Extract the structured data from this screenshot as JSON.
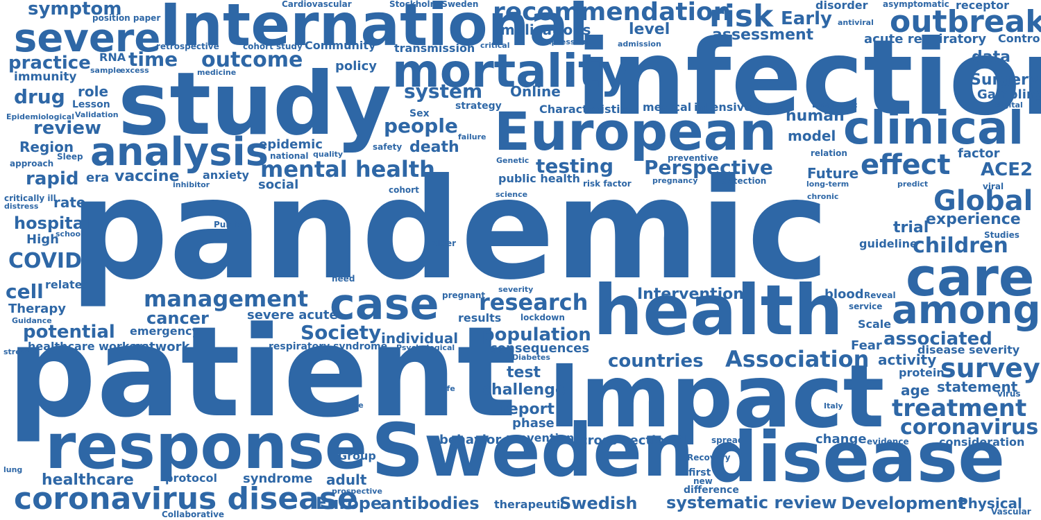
{
  "word_color": "#2e67a6",
  "words": [
    {
      "text": "pandemic"
    },
    {
      "text": "patient"
    },
    {
      "text": "infection"
    },
    {
      "text": "study"
    },
    {
      "text": "Impact"
    },
    {
      "text": "Sweden"
    },
    {
      "text": "health"
    },
    {
      "text": "disease"
    },
    {
      "text": "response"
    },
    {
      "text": "International"
    },
    {
      "text": "European"
    },
    {
      "text": "care"
    },
    {
      "text": "mortality"
    },
    {
      "text": "clinical"
    },
    {
      "text": "case"
    },
    {
      "text": "among"
    },
    {
      "text": "severe"
    },
    {
      "text": "analysis"
    },
    {
      "text": "outbreak"
    },
    {
      "text": "coronavirus disease"
    },
    {
      "text": "recommendation"
    },
    {
      "text": "risk"
    },
    {
      "text": "effect"
    },
    {
      "text": "Global"
    },
    {
      "text": "Perspective"
    },
    {
      "text": "management"
    },
    {
      "text": "mental health"
    },
    {
      "text": "research"
    },
    {
      "text": "Association"
    },
    {
      "text": "survey"
    },
    {
      "text": "treatment"
    },
    {
      "text": "coronavirus"
    },
    {
      "text": "children"
    },
    {
      "text": "outcome"
    },
    {
      "text": "system"
    },
    {
      "text": "people"
    },
    {
      "text": "testing"
    },
    {
      "text": "review"
    },
    {
      "text": "symptom"
    },
    {
      "text": "practice"
    },
    {
      "text": "drug"
    },
    {
      "text": "rapid"
    },
    {
      "text": "time"
    },
    {
      "text": "Society"
    },
    {
      "text": "population"
    },
    {
      "text": "associated"
    },
    {
      "text": "countries"
    },
    {
      "text": "systematic review"
    },
    {
      "text": "Development"
    },
    {
      "text": "antibodies"
    },
    {
      "text": "Swedish"
    },
    {
      "text": "Europe"
    },
    {
      "text": "potential"
    },
    {
      "text": "cancer"
    },
    {
      "text": "hospital"
    },
    {
      "text": "COVID"
    },
    {
      "text": "cell"
    },
    {
      "text": "ACE2"
    },
    {
      "text": "experience"
    },
    {
      "text": "trial"
    },
    {
      "text": "Early"
    },
    {
      "text": "implications"
    },
    {
      "text": "assessment"
    },
    {
      "text": "level"
    },
    {
      "text": "transmission"
    },
    {
      "text": "acute respiratory"
    },
    {
      "text": "data"
    },
    {
      "text": "Surgery"
    },
    {
      "text": "Gambling"
    },
    {
      "text": "death"
    },
    {
      "text": "role"
    },
    {
      "text": "Online"
    },
    {
      "text": "vaccine"
    },
    {
      "text": "epidemic"
    },
    {
      "text": "Region"
    },
    {
      "text": "human"
    },
    {
      "text": "model"
    },
    {
      "text": "Future"
    },
    {
      "text": "factor"
    },
    {
      "text": "Characteristics"
    },
    {
      "text": "medical"
    },
    {
      "text": "intensive care"
    },
    {
      "text": "public health"
    },
    {
      "text": "Intervention"
    },
    {
      "text": "individual"
    },
    {
      "text": "consequences"
    },
    {
      "text": "report"
    },
    {
      "text": "challenge"
    },
    {
      "text": "test"
    },
    {
      "text": "phase"
    },
    {
      "text": "prevention"
    },
    {
      "text": "cross-sectional"
    },
    {
      "text": "behavior"
    },
    {
      "text": "change"
    },
    {
      "text": "consideration"
    },
    {
      "text": "statement"
    },
    {
      "text": "activity"
    },
    {
      "text": "disease severity"
    },
    {
      "text": "age"
    },
    {
      "text": "protein"
    },
    {
      "text": "Physical"
    },
    {
      "text": "Scale"
    },
    {
      "text": "Fear"
    },
    {
      "text": "guideline"
    },
    {
      "text": "blood"
    },
    {
      "text": "Reveal"
    },
    {
      "text": "service"
    },
    {
      "text": "immunity"
    },
    {
      "text": "RNA"
    },
    {
      "text": "Community"
    },
    {
      "text": "policy"
    },
    {
      "text": "social"
    },
    {
      "text": "anxiety"
    },
    {
      "text": "era"
    },
    {
      "text": "rate"
    },
    {
      "text": "High"
    },
    {
      "text": "related"
    },
    {
      "text": "Therapy"
    },
    {
      "text": "emergency"
    },
    {
      "text": "network"
    },
    {
      "text": "healthcare workers"
    },
    {
      "text": "severe acute"
    },
    {
      "text": "respiratory syndrome"
    },
    {
      "text": "results"
    },
    {
      "text": "healthcare"
    },
    {
      "text": "protocol"
    },
    {
      "text": "syndrome"
    },
    {
      "text": "adult"
    },
    {
      "text": "Group"
    },
    {
      "text": "first"
    },
    {
      "text": "new"
    },
    {
      "text": "difference"
    },
    {
      "text": "Recovery"
    },
    {
      "text": "therapeutic"
    },
    {
      "text": "Collaborative"
    },
    {
      "text": "Vascular"
    },
    {
      "text": "Stockholm Sweden"
    },
    {
      "text": "Cardiovascular"
    },
    {
      "text": "position paper"
    },
    {
      "text": "retrospective"
    },
    {
      "text": "cohort study"
    },
    {
      "text": "sample"
    },
    {
      "text": "excess"
    },
    {
      "text": "medicine"
    },
    {
      "text": "Lesson"
    },
    {
      "text": "Validation"
    },
    {
      "text": "Epidemiological"
    },
    {
      "text": "Sleep"
    },
    {
      "text": "approach"
    },
    {
      "text": "critically ill"
    },
    {
      "text": "distress"
    },
    {
      "text": "Public"
    },
    {
      "text": "school"
    },
    {
      "text": "Guidance"
    },
    {
      "text": "stress"
    },
    {
      "text": "lung"
    },
    {
      "text": "disorder"
    },
    {
      "text": "asymptomatic"
    },
    {
      "text": "receptor"
    },
    {
      "text": "antiviral"
    },
    {
      "text": "Control"
    },
    {
      "text": "critical"
    },
    {
      "text": "expression"
    },
    {
      "text": "admission"
    },
    {
      "text": "Sex"
    },
    {
      "text": "strategy"
    },
    {
      "text": "failure"
    },
    {
      "text": "safety"
    },
    {
      "text": "quality"
    },
    {
      "text": "national"
    },
    {
      "text": "Diagnostic"
    },
    {
      "text": "digital"
    },
    {
      "text": "preventive"
    },
    {
      "text": "relation"
    },
    {
      "text": "Genetic"
    },
    {
      "text": "inhibitor"
    },
    {
      "text": "cohort"
    },
    {
      "text": "science"
    },
    {
      "text": "risk factor"
    },
    {
      "text": "pregnancy"
    },
    {
      "text": "detection"
    },
    {
      "text": "long-term"
    },
    {
      "text": "predict"
    },
    {
      "text": "viral"
    },
    {
      "text": "chronic"
    },
    {
      "text": "Studies"
    },
    {
      "text": "older"
    },
    {
      "text": "need"
    },
    {
      "text": "severity"
    },
    {
      "text": "pregnant"
    },
    {
      "text": "lockdown"
    },
    {
      "text": "Psychological"
    },
    {
      "text": "Diabetes"
    },
    {
      "text": "life"
    },
    {
      "text": "type"
    },
    {
      "text": "Italy"
    },
    {
      "text": "spread"
    },
    {
      "text": "evidence"
    },
    {
      "text": "prospective"
    },
    {
      "text": "virus"
    }
  ]
}
